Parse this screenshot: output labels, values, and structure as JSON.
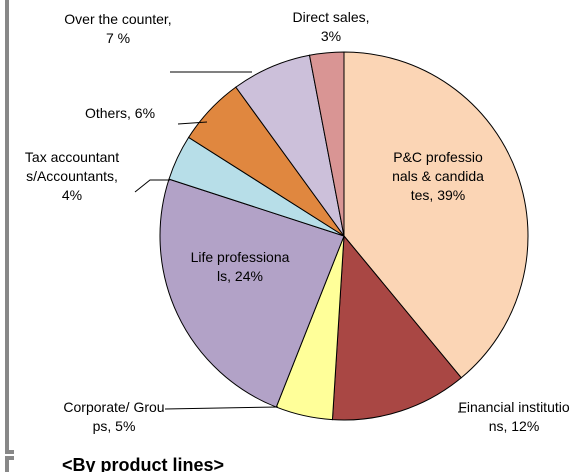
{
  "chart_data": {
    "type": "pie",
    "values": [
      39,
      12,
      5,
      24,
      4,
      6,
      7,
      3
    ],
    "value_labels": [
      "P&C professionals & candidates, 39%",
      "Financial institutions, 12%",
      "Corporate/ Groups, 5%",
      "Life professionals, 24%",
      "Tax accountants/Accountants, 4%",
      "Others, 6%",
      "Over the counter, 7 %",
      "Direct sales, 3%"
    ],
    "colors": [
      "#FBD5B5",
      "#A94744",
      "#FFFF99",
      "#B2A2C7",
      "#B7DEE8",
      "#E0873F",
      "#CCC0DA",
      "#D99594"
    ],
    "caption": "<By product lines>"
  }
}
